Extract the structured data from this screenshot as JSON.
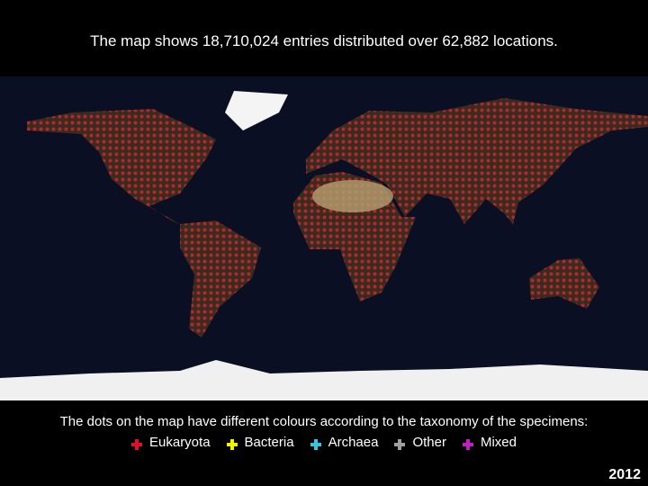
{
  "header": {
    "title": "The map shows 18,710,024 entries distributed over 62,882 locations."
  },
  "caption": "The dots on the map have different colours according to the taxonomy of the specimens:",
  "legend": [
    {
      "name": "Eukaryota",
      "color": "#e0102a"
    },
    {
      "name": "Bacteria",
      "color": "#f0f000"
    },
    {
      "name": "Archaea",
      "color": "#30c8e0"
    },
    {
      "name": "Other",
      "color": "#a0a0a0"
    },
    {
      "name": "Mixed",
      "color": "#c020c0"
    }
  ],
  "year": "2012"
}
